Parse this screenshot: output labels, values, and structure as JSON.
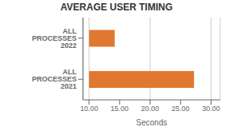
{
  "chart_data": {
    "type": "bar",
    "title": "AVERAGE USER TIMING",
    "xlabel": "Seconds",
    "orientation": "horizontal",
    "categories": [
      "ALL PROCESSES 2021",
      "ALL PROCESSES 2022"
    ],
    "starts": [
      10.0,
      10.0
    ],
    "values": [
      27.2,
      14.2
    ],
    "color": "#E07830",
    "xlim": [
      9.0,
      31.5
    ],
    "xticks": [
      {
        "value": 10.0,
        "label": "10.00"
      },
      {
        "value": 15.0,
        "label": "15.00"
      },
      {
        "value": 20.0,
        "label": "20.00"
      },
      {
        "value": 25.0,
        "label": "25.00"
      },
      {
        "value": 30.0,
        "label": "30.00"
      }
    ],
    "grid": true
  }
}
